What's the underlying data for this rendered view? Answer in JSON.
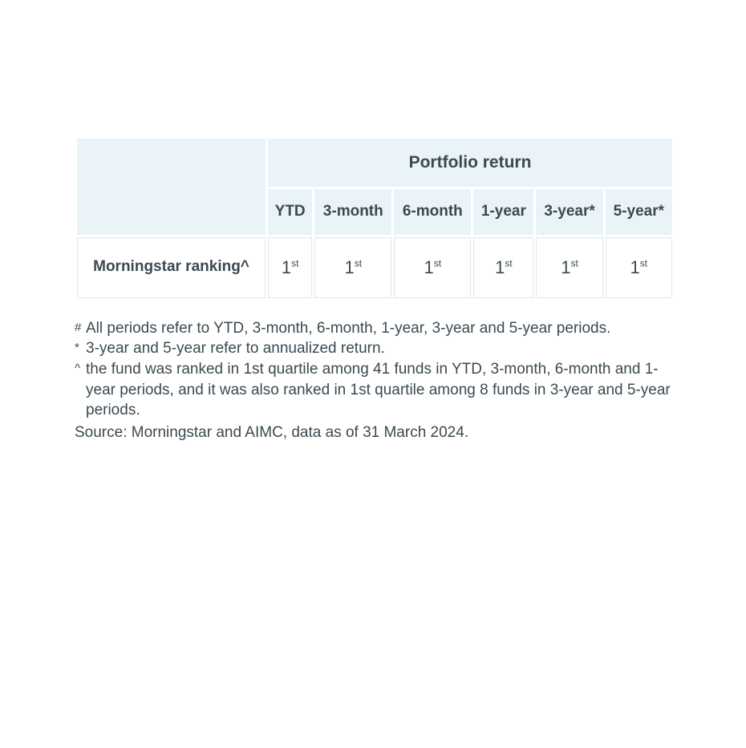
{
  "table": {
    "header_top": "Portfolio return",
    "columns": [
      "YTD",
      "3-month",
      "6-month",
      "1-year",
      "3-year*",
      "5-year*"
    ],
    "row_label": "Morningstar ranking^",
    "values": [
      {
        "num": "1",
        "suffix": "st"
      },
      {
        "num": "1",
        "suffix": "st"
      },
      {
        "num": "1",
        "suffix": "st"
      },
      {
        "num": "1",
        "suffix": "st"
      },
      {
        "num": "1",
        "suffix": "st"
      },
      {
        "num": "1",
        "suffix": "st"
      }
    ],
    "colors": {
      "header_bg": "#e9f3f8",
      "cell_border": "#dbe7ee",
      "text": "#3a4a52",
      "bg": "#ffffff"
    },
    "fonts": {
      "header_top_size": 21,
      "header_col_size": 19,
      "row_label_size": 19,
      "cell_size": 22,
      "sup_size": 12
    }
  },
  "footnotes": [
    {
      "mark": "#",
      "text": "All periods refer to YTD, 3-month, 6-month, 1-year, 3-year and 5-year periods."
    },
    {
      "mark": "*",
      "text": "3-year and 5-year refer to annualized return."
    },
    {
      "mark": "^",
      "text": "the fund was ranked in 1st quartile among 41 funds in YTD, 3-month, 6-month and 1-year periods, and it was also ranked in 1st quartile among 8 funds in 3-year and 5-year periods."
    }
  ],
  "source": "Source: Morningstar and AIMC, data as of 31 March 2024."
}
